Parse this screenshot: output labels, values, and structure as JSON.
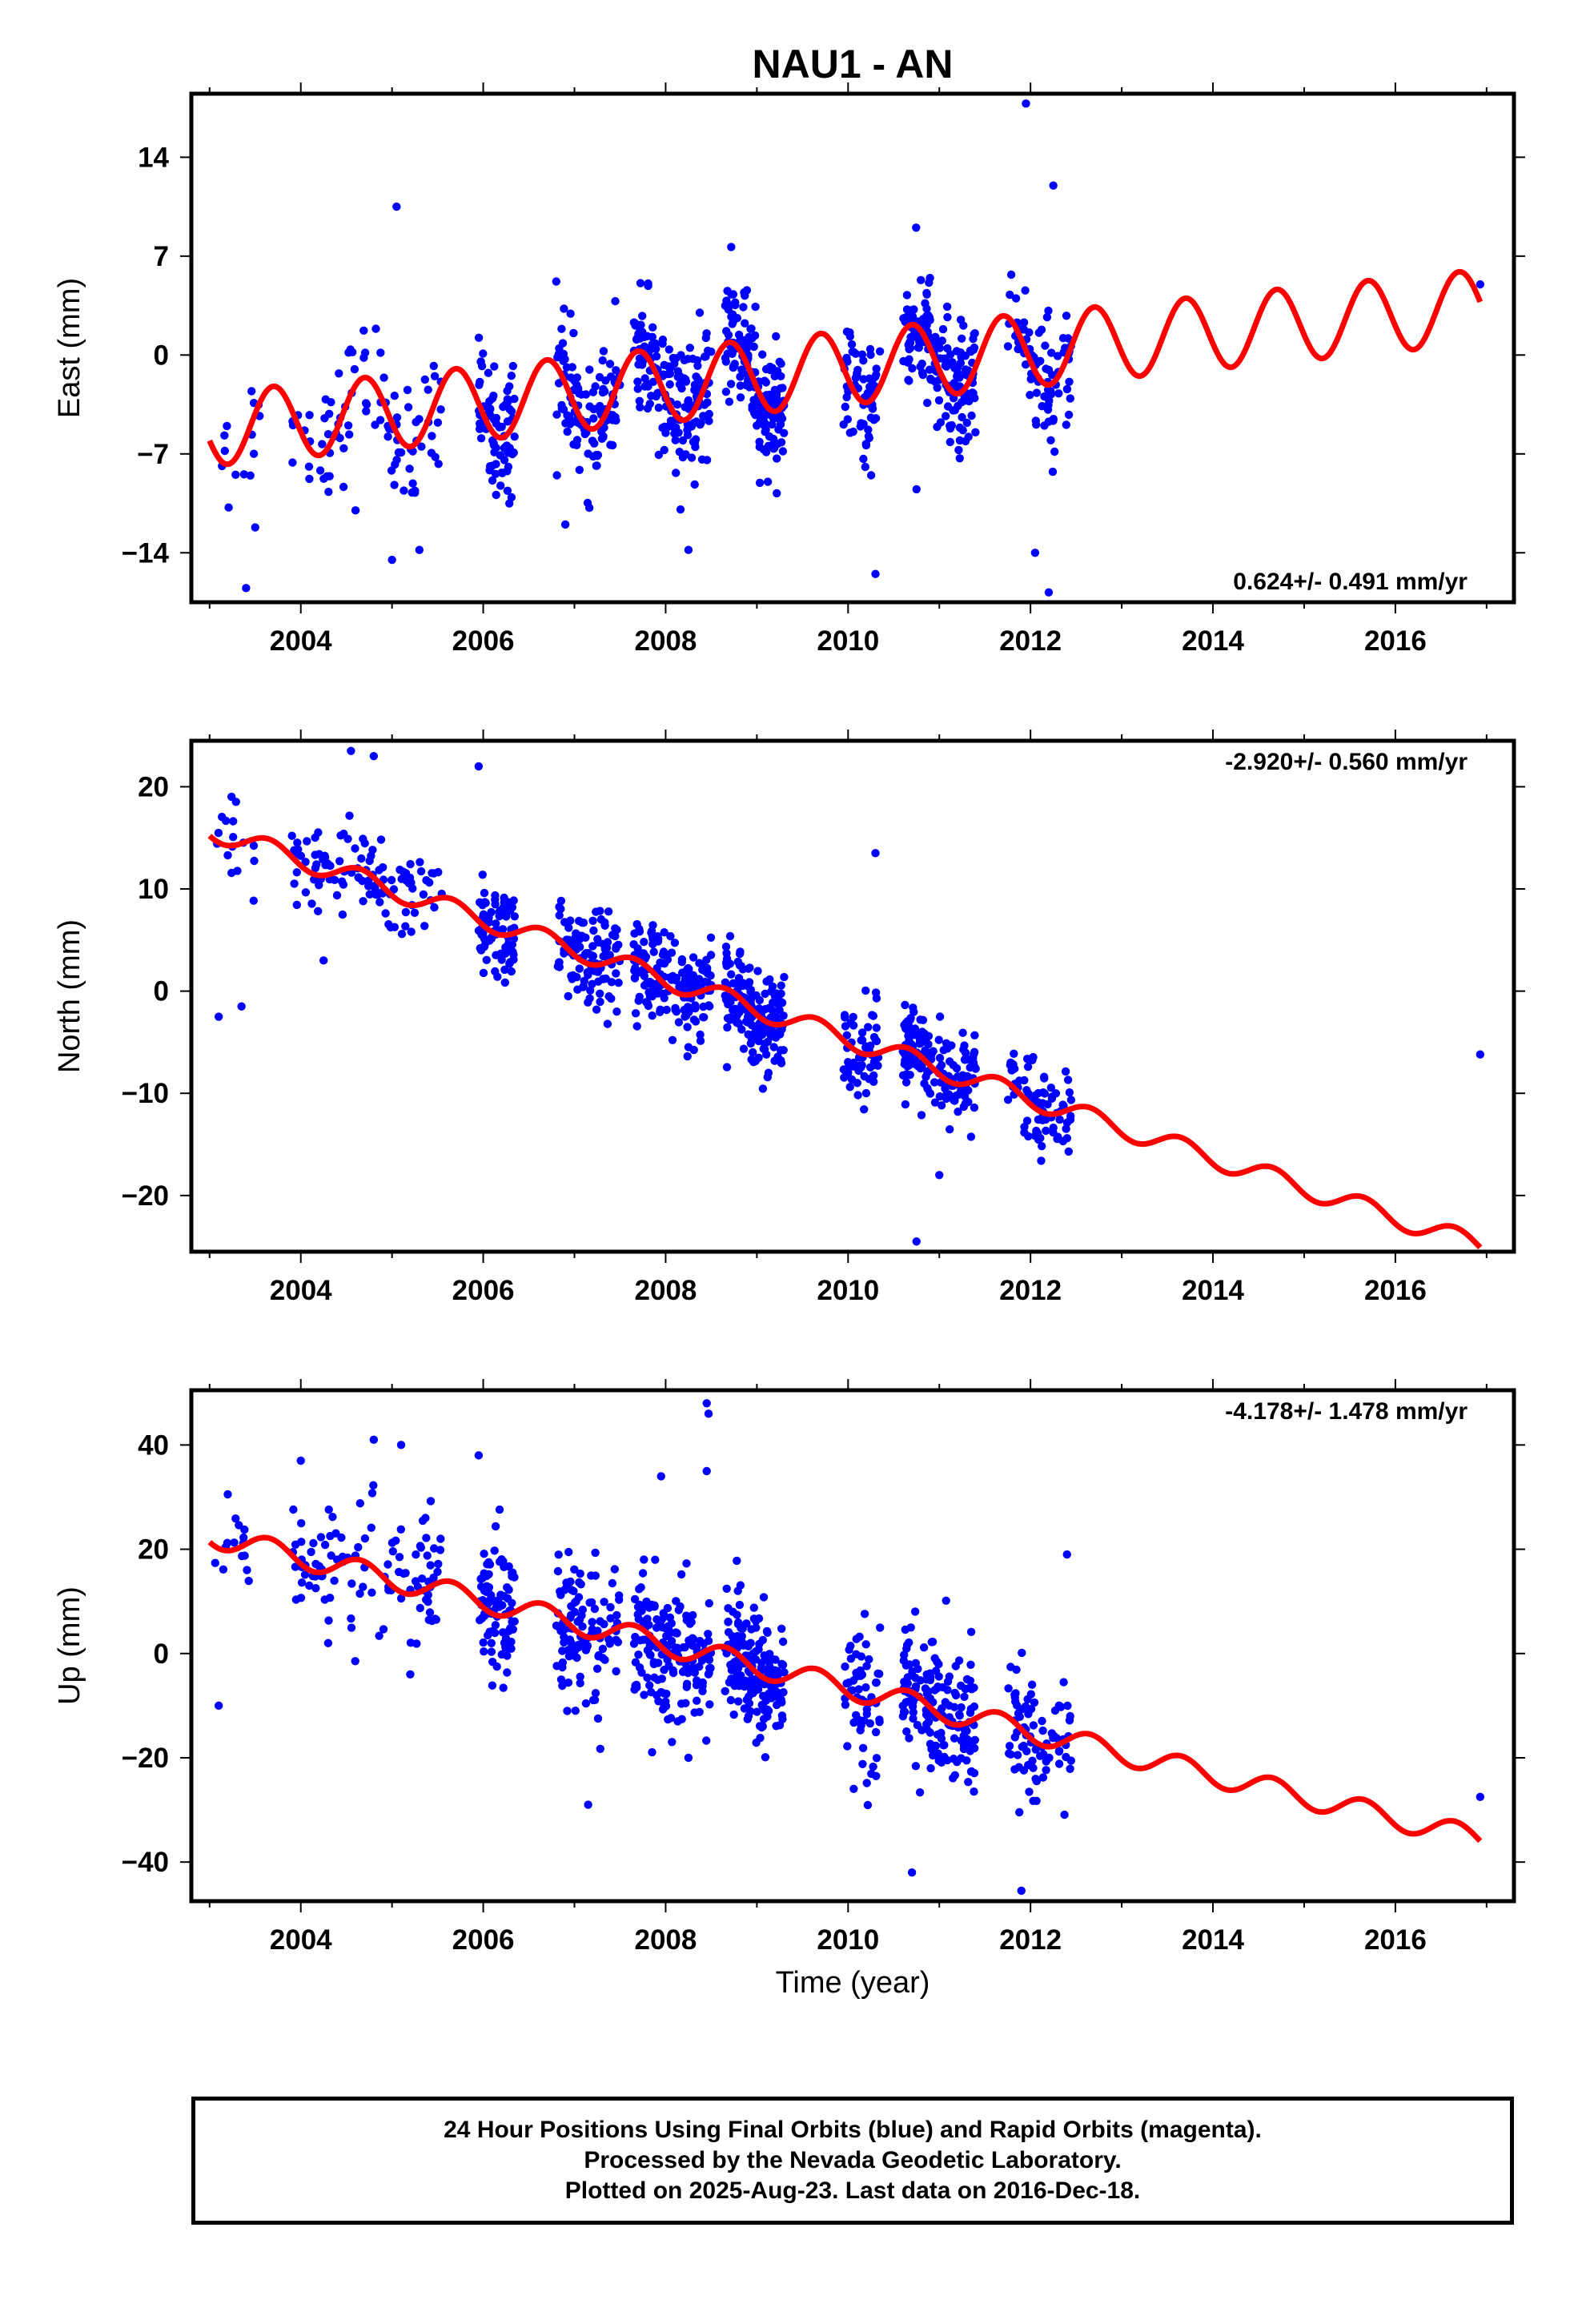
{
  "title": "NAU1 - AN",
  "xlabel": "Time (year)",
  "footer": {
    "line1": "24 Hour Positions Using Final Orbits (blue) and Rapid Orbits (magenta).",
    "line2": "Processed by the Nevada Geodetic Laboratory.",
    "line3": "Plotted on 2025-Aug-23. Last data on 2016-Dec-18."
  },
  "colors": {
    "points": "#0000ff",
    "model": "#ff0000",
    "frame": "#000000"
  },
  "chart_data": [
    {
      "type": "scatter",
      "component": "east",
      "ylabel": "East (mm)",
      "rate_text": "0.624+/- 0.491 mm/yr",
      "rate_position": "bottom-right",
      "xlim": [
        2002.8,
        2017.3
      ],
      "ylim": [
        -17.5,
        18.5
      ],
      "xticks": [
        2004,
        2006,
        2008,
        2010,
        2012,
        2014,
        2016
      ],
      "yticks": [
        -14,
        -7,
        0,
        7,
        14
      ],
      "model": {
        "base": -1.2,
        "rate": 0.624,
        "amp": 2.6,
        "phase": 0.45,
        "t0": 2009.5
      },
      "clusters": [
        {
          "t0": 2003.05,
          "t1": 2003.55,
          "n": 14
        },
        {
          "t0": 2003.9,
          "t1": 2005.55,
          "n": 90
        },
        {
          "t0": 2005.95,
          "t1": 2006.35,
          "n": 80
        },
        {
          "t0": 2006.8,
          "t1": 2007.5,
          "n": 110
        },
        {
          "t0": 2007.65,
          "t1": 2008.5,
          "n": 170
        },
        {
          "t0": 2008.65,
          "t1": 2009.3,
          "n": 180
        },
        {
          "t0": 2009.95,
          "t1": 2010.35,
          "n": 60
        },
        {
          "t0": 2010.6,
          "t1": 2011.4,
          "n": 170
        },
        {
          "t0": 2011.75,
          "t1": 2012.45,
          "n": 80
        }
      ],
      "scatter_sd": 2.2,
      "outliers": [
        {
          "x": 2003.4,
          "y": -16.5
        },
        {
          "x": 2003.5,
          "y": -12.2
        },
        {
          "x": 2004.6,
          "y": -11.0
        },
        {
          "x": 2005.0,
          "y": -14.5
        },
        {
          "x": 2005.3,
          "y": -13.8
        },
        {
          "x": 2005.05,
          "y": 10.5
        },
        {
          "x": 2006.9,
          "y": -12.0
        },
        {
          "x": 2008.25,
          "y": -13.8
        },
        {
          "x": 2010.3,
          "y": -15.5
        },
        {
          "x": 2010.75,
          "y": -9.5
        },
        {
          "x": 2011.95,
          "y": 17.8
        },
        {
          "x": 2012.05,
          "y": -14.0
        },
        {
          "x": 2012.2,
          "y": -16.8
        },
        {
          "x": 2012.25,
          "y": 12.0
        },
        {
          "x": 2016.93,
          "y": 5.0
        }
      ]
    },
    {
      "type": "scatter",
      "component": "north",
      "ylabel": "North (mm)",
      "rate_text": "-2.920+/- 0.560 mm/yr",
      "rate_position": "top-right",
      "xlim": [
        2002.8,
        2017.3
      ],
      "ylim": [
        -25.5,
        24.5
      ],
      "xticks": [
        2004,
        2006,
        2008,
        2010,
        2012,
        2014,
        2016
      ],
      "yticks": [
        -20,
        -10,
        0,
        10,
        20
      ],
      "model": {
        "base": -3.2,
        "rate": -2.92,
        "amp": 1.0,
        "phase": 0.4,
        "t0": 2009.5
      },
      "clusters": [
        {
          "t0": 2003.05,
          "t1": 2003.55,
          "n": 16
        },
        {
          "t0": 2003.9,
          "t1": 2005.55,
          "n": 110
        },
        {
          "t0": 2005.95,
          "t1": 2006.35,
          "n": 80
        },
        {
          "t0": 2006.8,
          "t1": 2007.5,
          "n": 110
        },
        {
          "t0": 2007.65,
          "t1": 2008.5,
          "n": 170
        },
        {
          "t0": 2008.65,
          "t1": 2009.3,
          "n": 180
        },
        {
          "t0": 2009.95,
          "t1": 2010.35,
          "n": 60
        },
        {
          "t0": 2010.6,
          "t1": 2011.4,
          "n": 170
        },
        {
          "t0": 2011.75,
          "t1": 2012.45,
          "n": 80
        }
      ],
      "scatter_sd": 2.3,
      "outliers": [
        {
          "x": 2003.1,
          "y": -2.5
        },
        {
          "x": 2003.35,
          "y": -1.5
        },
        {
          "x": 2004.25,
          "y": 3.0
        },
        {
          "x": 2004.55,
          "y": 23.5
        },
        {
          "x": 2004.8,
          "y": 23.0
        },
        {
          "x": 2005.95,
          "y": 22.0
        },
        {
          "x": 2010.3,
          "y": 13.5
        },
        {
          "x": 2010.75,
          "y": -24.5
        },
        {
          "x": 2011.0,
          "y": -18.0
        },
        {
          "x": 2016.93,
          "y": -6.2
        }
      ]
    },
    {
      "type": "scatter",
      "component": "up",
      "ylabel": "Up (mm)",
      "rate_text": "-4.178+/- 1.478 mm/yr",
      "rate_position": "top-right",
      "xlim": [
        2002.8,
        2017.3
      ],
      "ylim": [
        -47.5,
        50.5
      ],
      "xticks": [
        2004,
        2006,
        2008,
        2010,
        2012,
        2014,
        2016
      ],
      "yticks": [
        -40,
        -20,
        0,
        20,
        40
      ],
      "model": {
        "base": -4.5,
        "rate": -4.178,
        "amp": 2.2,
        "phase": 0.4,
        "t0": 2009.5
      },
      "clusters": [
        {
          "t0": 2003.05,
          "t1": 2003.55,
          "n": 16
        },
        {
          "t0": 2003.9,
          "t1": 2005.55,
          "n": 110
        },
        {
          "t0": 2005.95,
          "t1": 2006.35,
          "n": 90
        },
        {
          "t0": 2006.8,
          "t1": 2007.5,
          "n": 110
        },
        {
          "t0": 2007.65,
          "t1": 2008.5,
          "n": 170
        },
        {
          "t0": 2008.65,
          "t1": 2009.3,
          "n": 180
        },
        {
          "t0": 2009.95,
          "t1": 2010.35,
          "n": 60
        },
        {
          "t0": 2010.6,
          "t1": 2011.4,
          "n": 170
        },
        {
          "t0": 2011.75,
          "t1": 2012.45,
          "n": 80
        }
      ],
      "scatter_sd": 6.5,
      "outliers": [
        {
          "x": 2003.1,
          "y": -10.0
        },
        {
          "x": 2004.0,
          "y": 37.0
        },
        {
          "x": 2004.3,
          "y": 2.0
        },
        {
          "x": 2004.8,
          "y": 41.0
        },
        {
          "x": 2005.1,
          "y": 40.0
        },
        {
          "x": 2005.2,
          "y": -4.0
        },
        {
          "x": 2005.95,
          "y": 38.0
        },
        {
          "x": 2007.15,
          "y": -29.0
        },
        {
          "x": 2007.95,
          "y": 34.0
        },
        {
          "x": 2008.45,
          "y": 48.0
        },
        {
          "x": 2008.47,
          "y": 46.0
        },
        {
          "x": 2008.45,
          "y": 35.0
        },
        {
          "x": 2008.25,
          "y": -20.0
        },
        {
          "x": 2010.7,
          "y": -42.0
        },
        {
          "x": 2011.9,
          "y": -45.5
        },
        {
          "x": 2012.4,
          "y": 19.0
        },
        {
          "x": 2016.93,
          "y": -27.5
        }
      ]
    }
  ]
}
